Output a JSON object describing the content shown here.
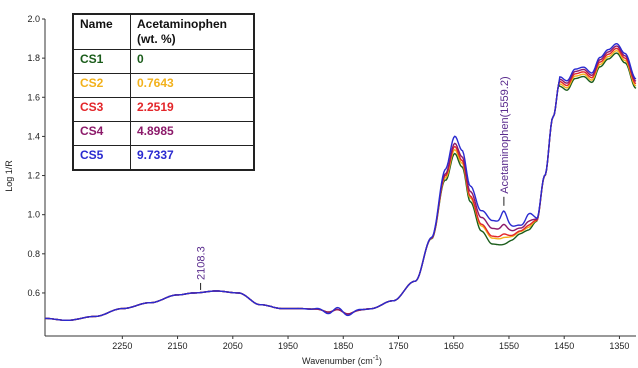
{
  "chart_data": {
    "type": "line",
    "xlabel": "Wavenumber  (cm",
    "xlabel_sup": "-1",
    "xlabel_end": ")",
    "ylabel": "Log 1/R",
    "xlim": [
      2390,
      1320
    ],
    "ylim": [
      0.38,
      2.0
    ],
    "x_reversed": true,
    "grid": false,
    "x_ticks": [
      2250,
      2150,
      2050,
      1950,
      1850,
      1750,
      1650,
      1550,
      1450,
      1350
    ],
    "y_ticks": [
      0.6,
      0.8,
      1.0,
      1.2,
      1.4,
      1.6,
      1.8,
      2.0
    ],
    "y_tick_labels": [
      "0.6",
      "0.8",
      "1.0",
      "1.2",
      "1.4",
      "1.6",
      "1.8",
      "2.0"
    ],
    "annotations": [
      {
        "text": "2108.3",
        "x": 2108.3,
        "y": 0.6,
        "color": "#5b2d8e"
      },
      {
        "text": "Acetaminophen(1559.2)",
        "x": 1559.2,
        "y": 1.03,
        "color": "#5b2d8e"
      }
    ],
    "legend_table": {
      "headers": [
        "Name",
        "Acetaminophen\n(wt. %)"
      ],
      "header_line1": "Acetaminophen",
      "header_line2": "(wt. %)",
      "rows": [
        {
          "name": "CS1",
          "value": "0",
          "color": "#1a5c1a"
        },
        {
          "name": "CS2",
          "value": "0.7643",
          "color": "#f2b11b"
        },
        {
          "name": "CS3",
          "value": "2.2519",
          "color": "#e3262a"
        },
        {
          "name": "CS4",
          "value": "4.8985",
          "color": "#8c1a6a"
        },
        {
          "name": "CS5",
          "value": "9.7337",
          "color": "#2a2ad0"
        }
      ]
    },
    "series": [
      {
        "name": "CS1",
        "color": "#1a5c1a",
        "peak_offset": -0.03,
        "dip_offset": -0.05,
        "acet": 0.0
      },
      {
        "name": "CS2",
        "color": "#f2b11b",
        "peak_offset": -0.015,
        "dip_offset": -0.02,
        "acet": 0.01
      },
      {
        "name": "CS3",
        "color": "#e3262a",
        "peak_offset": 0.0,
        "dip_offset": -0.01,
        "acet": 0.02
      },
      {
        "name": "CS4",
        "color": "#8c1a6a",
        "peak_offset": 0.01,
        "dip_offset": 0.03,
        "acet": 0.035
      },
      {
        "name": "CS5",
        "color": "#2a2ad0",
        "peak_offset": 0.04,
        "dip_offset": 0.07,
        "acet": 0.07
      }
    ],
    "base_x": [
      2390,
      2350,
      2300,
      2250,
      2200,
      2150,
      2120,
      2080,
      2040,
      2000,
      1960,
      1920,
      1880,
      1840,
      1800,
      1760,
      1720,
      1690,
      1665,
      1648,
      1635,
      1620,
      1600,
      1580,
      1560,
      1545,
      1530,
      1515,
      1500,
      1485,
      1470,
      1458,
      1445,
      1430,
      1415,
      1400,
      1385,
      1370,
      1355,
      1340,
      1320
    ],
    "base_y": [
      0.47,
      0.46,
      0.48,
      0.52,
      0.55,
      0.59,
      0.6,
      0.61,
      0.6,
      0.54,
      0.52,
      0.52,
      0.51,
      0.5,
      0.52,
      0.56,
      0.66,
      0.88,
      1.2,
      1.35,
      1.28,
      1.1,
      0.96,
      0.9,
      0.89,
      0.9,
      0.92,
      0.93,
      0.97,
      1.2,
      1.5,
      1.68,
      1.66,
      1.72,
      1.73,
      1.7,
      1.78,
      1.82,
      1.85,
      1.8,
      1.67
    ]
  }
}
